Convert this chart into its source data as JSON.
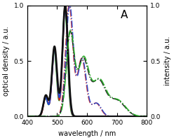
{
  "title_label": "A",
  "xlabel": "wavelength / nm",
  "ylabel_left": "optical density / a.u.",
  "ylabel_right": "intensity / a.u.",
  "xlim": [
    400,
    800
  ],
  "ylim": [
    0,
    1
  ],
  "xticks": [
    400,
    500,
    600,
    700,
    800
  ],
  "yticks_left": [
    0,
    0.5,
    1
  ],
  "yticks_right": [
    0,
    0.5,
    1
  ],
  "colors": {
    "DXP": "#cc2222",
    "tb_DXP": "#2244cc",
    "bone_DXP": "#22aa22",
    "o_bone_DXP": "#111111"
  },
  "figsize": [
    2.48,
    2.0
  ],
  "dpi": 100
}
